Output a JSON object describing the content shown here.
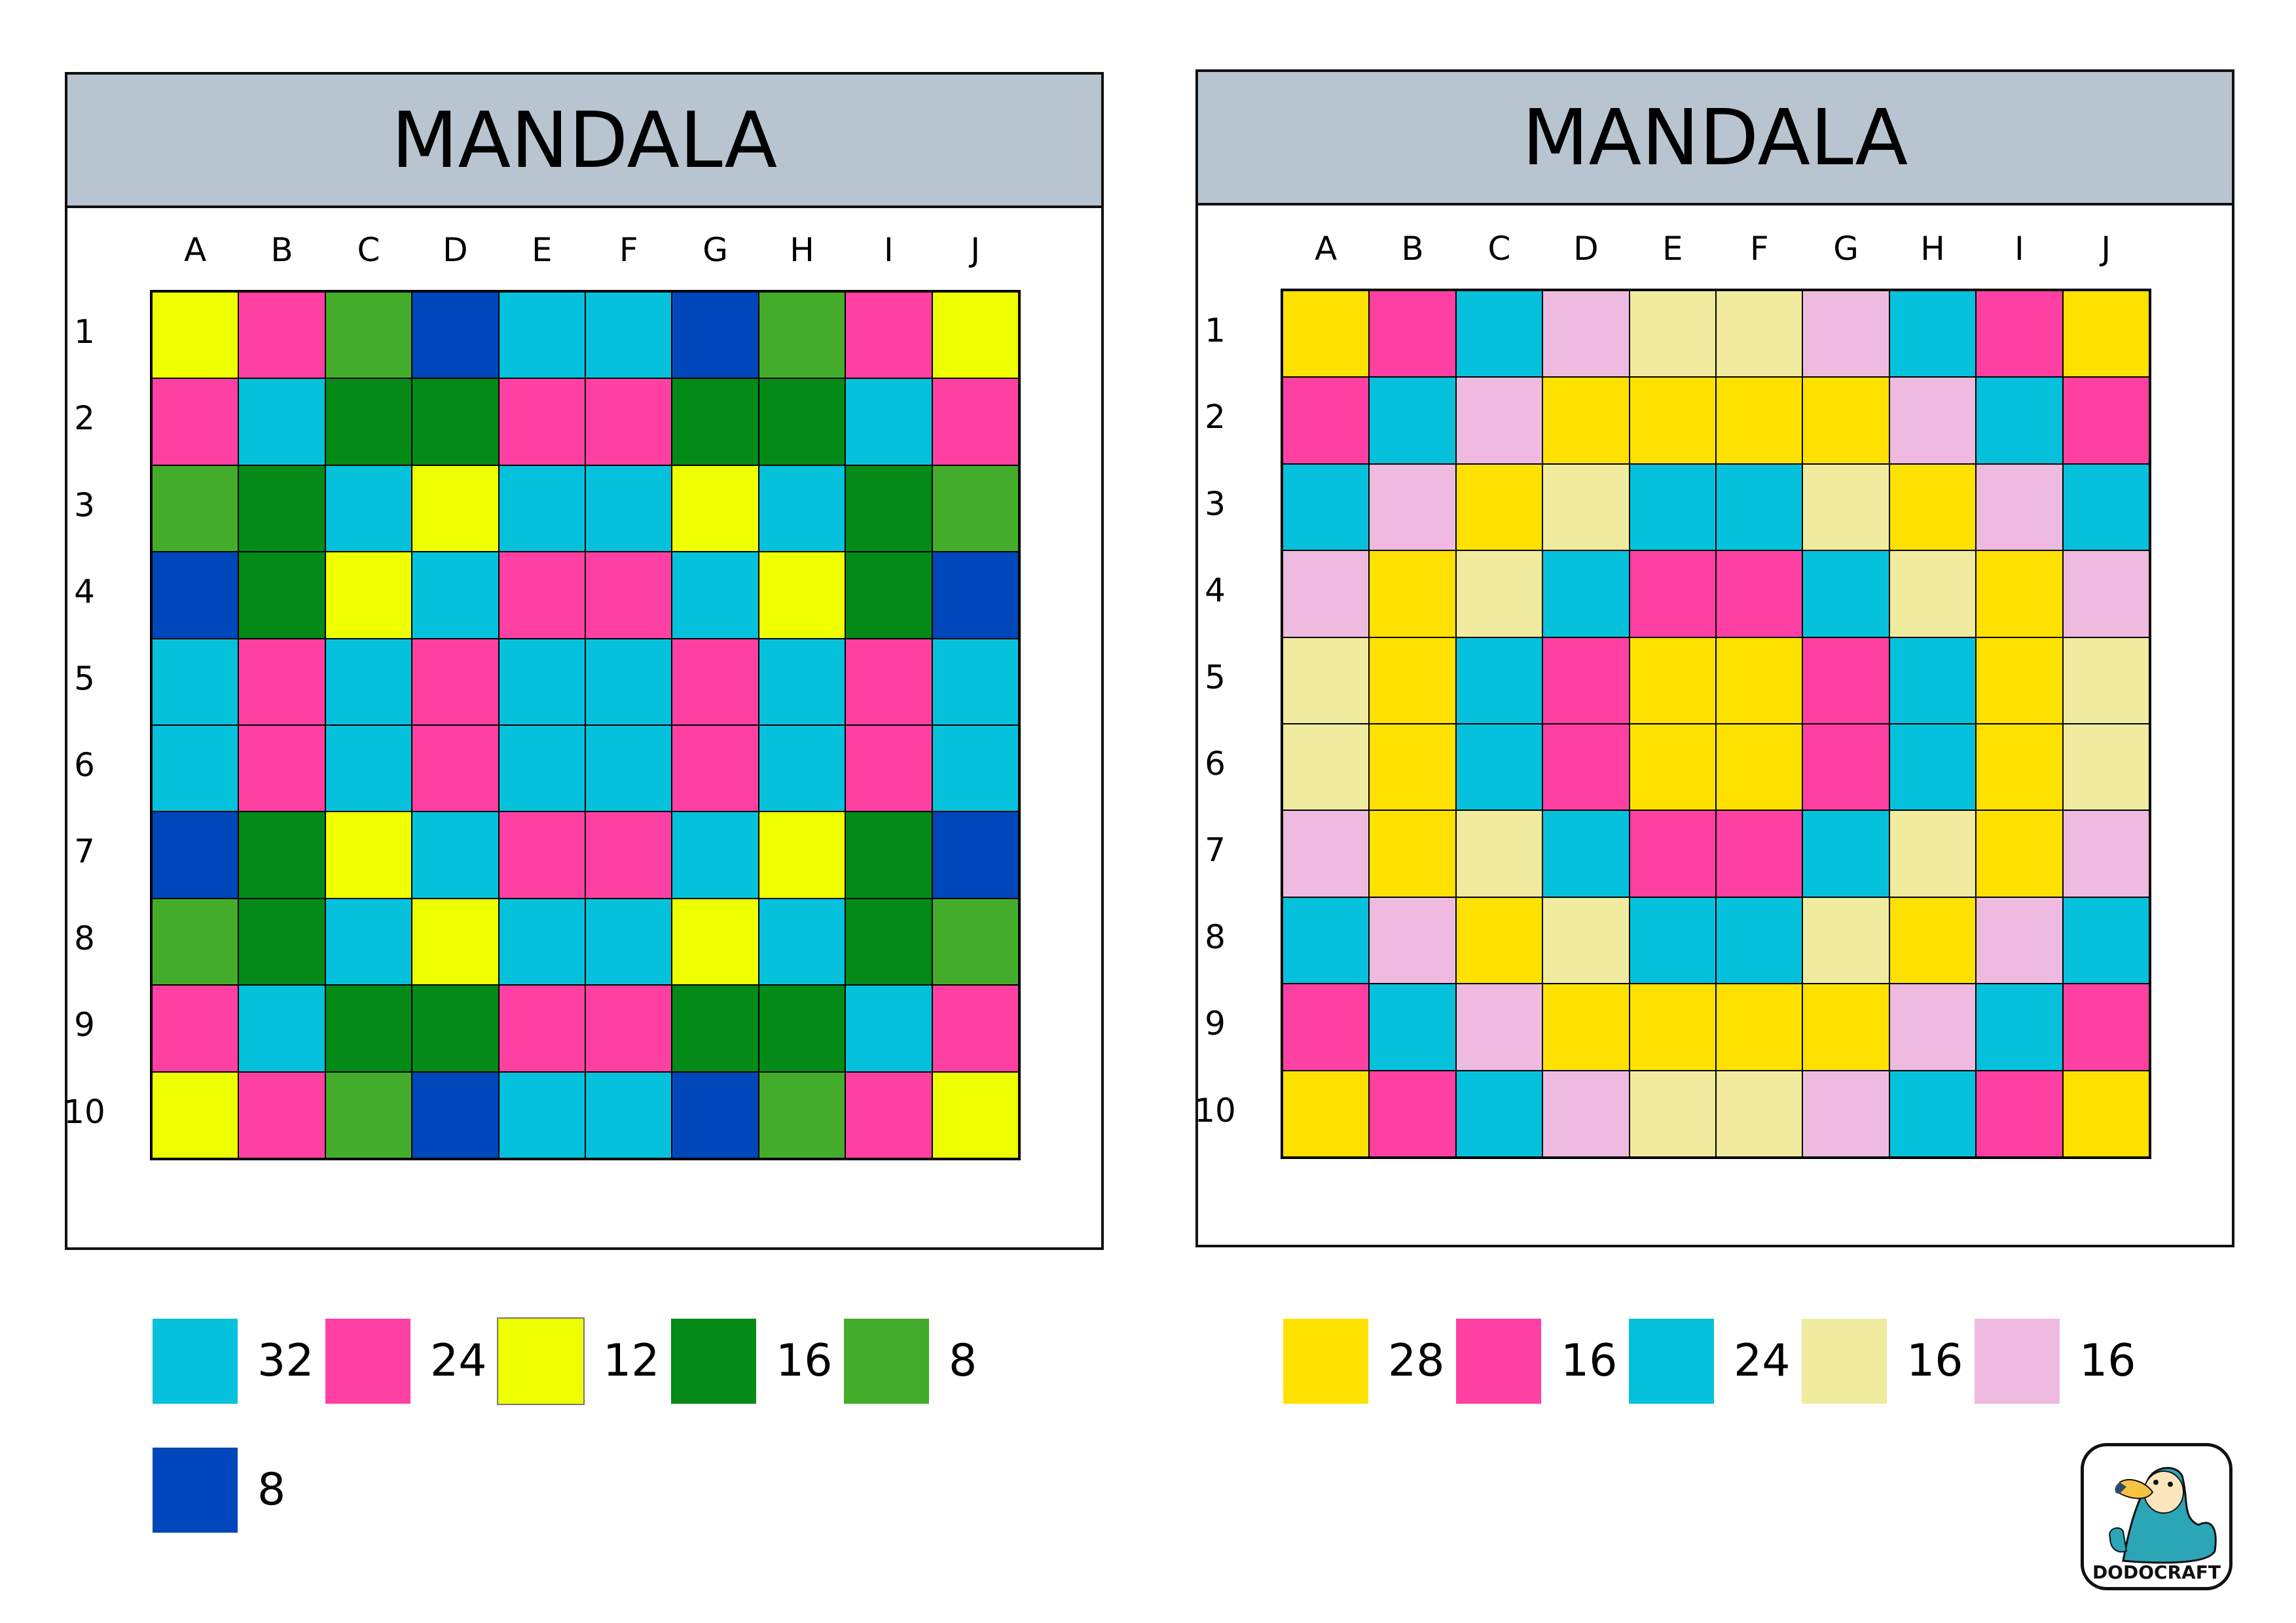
{
  "palette": {
    "C": "#06c1dc",
    "P": "#ff40a3",
    "Y": "#eeff00",
    "G": "#038a17",
    "L": "#43ad2b",
    "B": "#0047bb",
    "O": "#ffe100",
    "K": "#f0eb9f",
    "V": "#eebadf"
  },
  "columns": [
    "A",
    "B",
    "C",
    "D",
    "E",
    "F",
    "G",
    "H",
    "I",
    "J"
  ],
  "rows": [
    "1",
    "2",
    "3",
    "4",
    "5",
    "6",
    "7",
    "8",
    "9",
    "10"
  ],
  "left": {
    "title": "MANDALA",
    "grid": [
      "YPLBCCBLPY",
      "PCGGPPGGCP",
      "LGCYCCYCGL",
      "BGYCPPCYGB",
      "CPCPCCPCPC",
      "CPCPCCPCPC",
      "BGYCPPCYGB",
      "LGCYCCYCGL",
      "PCGGPPGGCP",
      "YPLBCCBLPY"
    ],
    "legend": [
      {
        "color": "C",
        "count": "32"
      },
      {
        "color": "P",
        "count": "24"
      },
      {
        "color": "Y",
        "count": "12"
      },
      {
        "color": "G",
        "count": "16"
      },
      {
        "color": "L",
        "count": "8"
      },
      {
        "color": "B",
        "count": "8"
      }
    ]
  },
  "right": {
    "title": "MANDALA",
    "grid": [
      "OPCVKKVCPO",
      "PCVOOOOVCP",
      "CVOKCCKOVC",
      "VOKCPPCKOV",
      "KOCPOOPCOK",
      "KOCPOOPCOK",
      "VOKCPPCKOV",
      "CVOKCCKOVC",
      "PCVOOOOVCP",
      "OPCVKKVCPO"
    ],
    "legend": [
      {
        "color": "O",
        "count": "28"
      },
      {
        "color": "P",
        "count": "16"
      },
      {
        "color": "C",
        "count": "24"
      },
      {
        "color": "K",
        "count": "16"
      },
      {
        "color": "V",
        "count": "16"
      }
    ]
  },
  "logo": {
    "text": "DODOCRAFT",
    "icon": "dodo-bird-icon"
  }
}
